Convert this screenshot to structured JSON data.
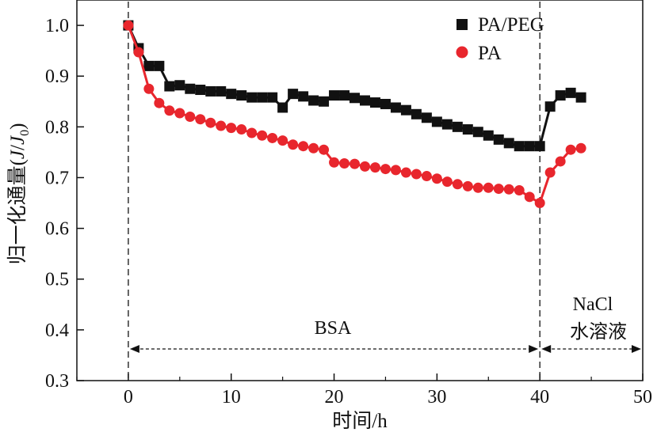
{
  "chart_data": {
    "type": "line",
    "title": "",
    "xlabel": "时间/h",
    "ylabel_main": "归一化通量(",
    "ylabel_italic_J": "J",
    "ylabel_slash": "/",
    "ylabel_sub": "0",
    "ylabel_close": ")",
    "xlim": [
      -5,
      50
    ],
    "ylim": [
      0.3,
      1.05
    ],
    "xticks": [
      0,
      10,
      20,
      30,
      40,
      50
    ],
    "xtick_labels": [
      "0",
      "10",
      "20",
      "30",
      "40",
      "50"
    ],
    "yticks": [
      0.3,
      0.4,
      0.5,
      0.6,
      0.7,
      0.8,
      0.9,
      1.0
    ],
    "ytick_labels": [
      "0.3",
      "0.4",
      "0.5",
      "0.6",
      "0.7",
      "0.8",
      "0.9",
      "1.0"
    ],
    "legend_position": "top-right",
    "series": [
      {
        "name": "PA/PEG",
        "marker": "square",
        "color": "#111111",
        "x": [
          0,
          1,
          2,
          3,
          4,
          5,
          6,
          7,
          8,
          9,
          10,
          11,
          12,
          13,
          14,
          15,
          16,
          17,
          18,
          19,
          20,
          21,
          22,
          23,
          24,
          25,
          26,
          27,
          28,
          29,
          30,
          31,
          32,
          33,
          34,
          35,
          36,
          37,
          38,
          39,
          40,
          41,
          42,
          43,
          44
        ],
        "y": [
          1.0,
          0.955,
          0.92,
          0.92,
          0.88,
          0.882,
          0.875,
          0.873,
          0.87,
          0.87,
          0.865,
          0.862,
          0.858,
          0.858,
          0.858,
          0.838,
          0.865,
          0.86,
          0.852,
          0.85,
          0.862,
          0.862,
          0.857,
          0.852,
          0.848,
          0.845,
          0.838,
          0.833,
          0.825,
          0.818,
          0.81,
          0.805,
          0.8,
          0.795,
          0.79,
          0.783,
          0.775,
          0.768,
          0.762,
          0.762,
          0.762,
          0.84,
          0.862,
          0.867,
          0.858
        ]
      },
      {
        "name": "PA",
        "marker": "circle",
        "color": "#e8262d",
        "x": [
          0,
          1,
          2,
          3,
          4,
          5,
          6,
          7,
          8,
          9,
          10,
          11,
          12,
          13,
          14,
          15,
          16,
          17,
          18,
          19,
          20,
          21,
          22,
          23,
          24,
          25,
          26,
          27,
          28,
          29,
          30,
          31,
          32,
          33,
          34,
          35,
          36,
          37,
          38,
          39,
          40,
          41,
          42,
          43,
          44
        ],
        "y": [
          1.0,
          0.947,
          0.875,
          0.847,
          0.832,
          0.827,
          0.82,
          0.815,
          0.808,
          0.802,
          0.798,
          0.795,
          0.788,
          0.783,
          0.778,
          0.773,
          0.765,
          0.762,
          0.758,
          0.755,
          0.73,
          0.728,
          0.727,
          0.722,
          0.72,
          0.717,
          0.715,
          0.71,
          0.707,
          0.703,
          0.698,
          0.692,
          0.687,
          0.683,
          0.68,
          0.68,
          0.678,
          0.677,
          0.675,
          0.662,
          0.65,
          0.71,
          0.732,
          0.755,
          0.758
        ]
      }
    ],
    "vlines_x": [
      0,
      40
    ],
    "annotations": {
      "bsa_label": "BSA",
      "bsa_range": [
        0,
        40
      ],
      "nacl_label_line1": "NaCl",
      "nacl_label_line2": "水溶液",
      "nacl_range": [
        40,
        50
      ]
    }
  }
}
